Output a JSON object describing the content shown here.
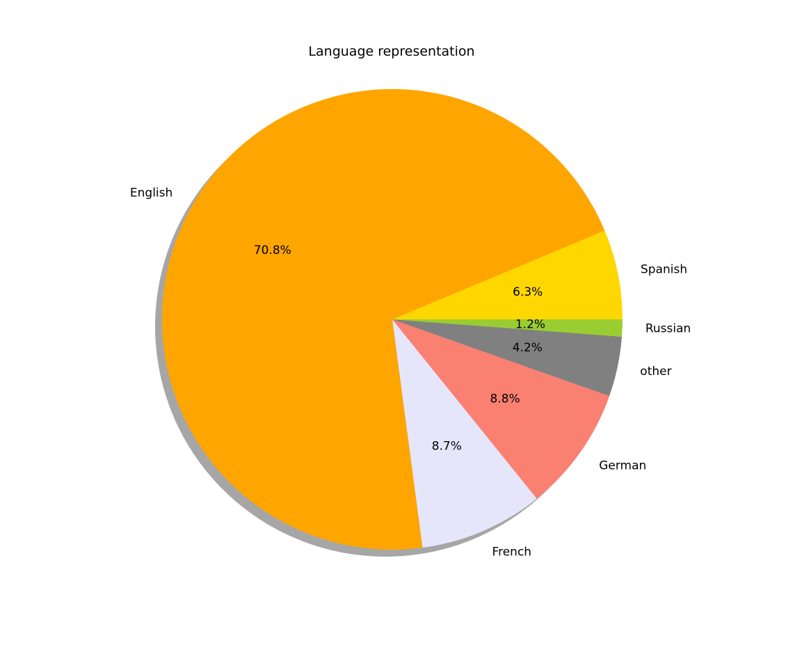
{
  "chart_data": {
    "type": "pie",
    "title": "Language representation",
    "slices": [
      {
        "label": "Spanish",
        "value": 6.3,
        "pct_label": "6.3%",
        "color": "#FFD700"
      },
      {
        "label": "English",
        "value": 70.8,
        "pct_label": "70.8%",
        "color": "#FFA500"
      },
      {
        "label": "French",
        "value": 8.7,
        "pct_label": "8.7%",
        "color": "#E6E6FA"
      },
      {
        "label": "German",
        "value": 8.8,
        "pct_label": "8.8%",
        "color": "#FA8072"
      },
      {
        "label": "other",
        "value": 4.2,
        "pct_label": "4.2%",
        "color": "#808080"
      },
      {
        "label": "Russian",
        "value": 1.2,
        "pct_label": "1.2%",
        "color": "#9ACD32"
      }
    ],
    "start_angle_deg": 0,
    "direction": "counterclockwise",
    "shadow": true,
    "legend": "none"
  }
}
